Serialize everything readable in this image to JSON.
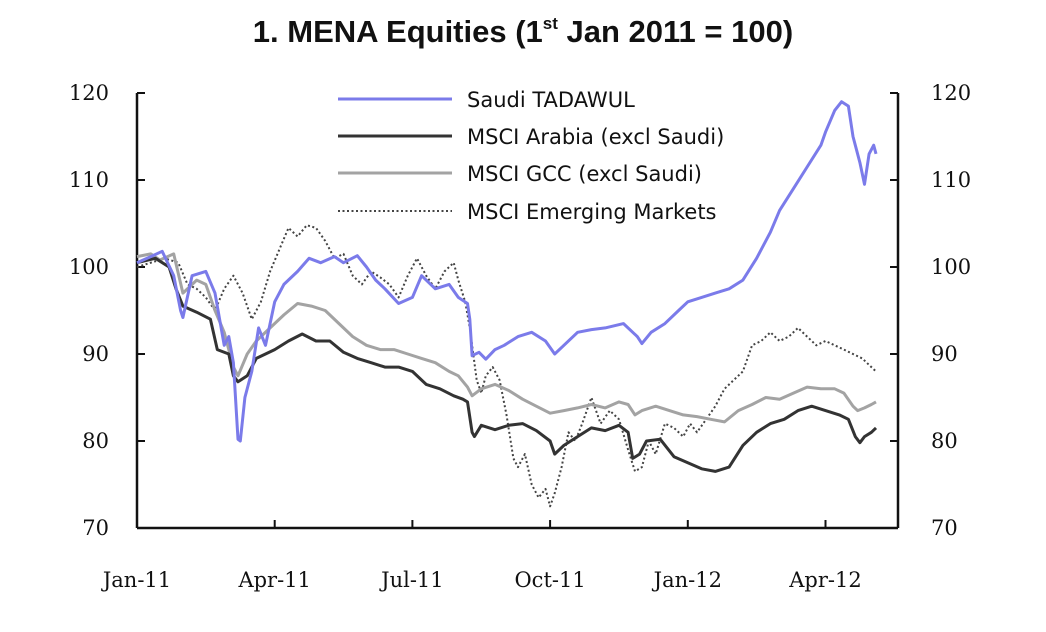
{
  "chart_data": {
    "type": "line",
    "title": {
      "number": "1.",
      "main": "MENA Equities (1",
      "superscript": "st",
      "rest": " Jan 2011 = 100)"
    },
    "x_ticks": [
      "Jan-11",
      "Apr-11",
      "Jul-11",
      "Oct-11",
      "Jan-12",
      "Apr-12"
    ],
    "x_tick_positions_months": [
      0,
      3,
      6,
      9,
      12,
      15
    ],
    "x_range_months": [
      0,
      16.1
    ],
    "ylim": [
      70,
      120
    ],
    "y_ticks": [
      70,
      80,
      90,
      100,
      110,
      120
    ],
    "y_ticks_right": [
      70,
      80,
      90,
      100,
      110,
      120
    ],
    "legend_position": "top-center",
    "series": [
      {
        "name": "Saudi TADAWUL",
        "color": "#7b7bea",
        "style": "solid",
        "points": [
          [
            0,
            100.5
          ],
          [
            0.3,
            101.2
          ],
          [
            0.55,
            101.8
          ],
          [
            0.8,
            99
          ],
          [
            0.95,
            95
          ],
          [
            1.0,
            94.2
          ],
          [
            1.2,
            99
          ],
          [
            1.5,
            99.5
          ],
          [
            1.7,
            97
          ],
          [
            1.9,
            91
          ],
          [
            2.0,
            92
          ],
          [
            2.1,
            89
          ],
          [
            2.2,
            80.2
          ],
          [
            2.25,
            80
          ],
          [
            2.35,
            85
          ],
          [
            2.5,
            88
          ],
          [
            2.65,
            93
          ],
          [
            2.8,
            91
          ],
          [
            3.0,
            96
          ],
          [
            3.2,
            98
          ],
          [
            3.5,
            99.5
          ],
          [
            3.75,
            101
          ],
          [
            4.0,
            100.5
          ],
          [
            4.3,
            101.2
          ],
          [
            4.5,
            100.5
          ],
          [
            4.8,
            101.3
          ],
          [
            5.0,
            100
          ],
          [
            5.2,
            98.5
          ],
          [
            5.4,
            97.5
          ],
          [
            5.7,
            95.8
          ],
          [
            6.0,
            96.5
          ],
          [
            6.2,
            99
          ],
          [
            6.5,
            97.5
          ],
          [
            6.8,
            98
          ],
          [
            7.0,
            96.5
          ],
          [
            7.2,
            95.8
          ],
          [
            7.25,
            94
          ],
          [
            7.3,
            89.8
          ],
          [
            7.45,
            90.2
          ],
          [
            7.6,
            89.4
          ],
          [
            7.8,
            90.5
          ],
          [
            8.0,
            91
          ],
          [
            8.3,
            92
          ],
          [
            8.6,
            92.5
          ],
          [
            8.9,
            91.5
          ],
          [
            9.1,
            90
          ],
          [
            9.3,
            91
          ],
          [
            9.6,
            92.5
          ],
          [
            9.9,
            92.8
          ],
          [
            10.2,
            93
          ],
          [
            10.6,
            93.5
          ],
          [
            10.9,
            92
          ],
          [
            11.0,
            91.2
          ],
          [
            11.2,
            92.5
          ],
          [
            11.5,
            93.5
          ],
          [
            11.8,
            95
          ],
          [
            12.0,
            96
          ],
          [
            12.3,
            96.5
          ],
          [
            12.6,
            97
          ],
          [
            12.9,
            97.5
          ],
          [
            13.2,
            98.5
          ],
          [
            13.5,
            101
          ],
          [
            13.8,
            104
          ],
          [
            14.0,
            106.5
          ],
          [
            14.3,
            109
          ],
          [
            14.6,
            111.5
          ],
          [
            14.9,
            114
          ],
          [
            15.0,
            115.5
          ],
          [
            15.2,
            118
          ],
          [
            15.35,
            119
          ],
          [
            15.5,
            118.5
          ],
          [
            15.6,
            115
          ],
          [
            15.75,
            112
          ],
          [
            15.85,
            109.5
          ],
          [
            15.95,
            113
          ],
          [
            16.05,
            114
          ],
          [
            16.1,
            113
          ]
        ]
      },
      {
        "name": "MSCI Arabia (excl Saudi)",
        "color": "#333333",
        "style": "solid",
        "points": [
          [
            0,
            100.5
          ],
          [
            0.4,
            101
          ],
          [
            0.7,
            100
          ],
          [
            0.85,
            97.5
          ],
          [
            1.0,
            95.5
          ],
          [
            1.3,
            94.8
          ],
          [
            1.6,
            94
          ],
          [
            1.75,
            90.5
          ],
          [
            2.0,
            90
          ],
          [
            2.1,
            87.5
          ],
          [
            2.2,
            86.8
          ],
          [
            2.4,
            87.5
          ],
          [
            2.6,
            89.5
          ],
          [
            2.8,
            90
          ],
          [
            3.0,
            90.5
          ],
          [
            3.3,
            91.5
          ],
          [
            3.6,
            92.3
          ],
          [
            3.9,
            91.5
          ],
          [
            4.2,
            91.5
          ],
          [
            4.5,
            90.2
          ],
          [
            4.8,
            89.5
          ],
          [
            5.1,
            89
          ],
          [
            5.4,
            88.5
          ],
          [
            5.7,
            88.5
          ],
          [
            6.0,
            88
          ],
          [
            6.3,
            86.5
          ],
          [
            6.6,
            86
          ],
          [
            6.9,
            85.2
          ],
          [
            7.1,
            84.8
          ],
          [
            7.2,
            84.5
          ],
          [
            7.3,
            81
          ],
          [
            7.35,
            80.5
          ],
          [
            7.5,
            81.8
          ],
          [
            7.8,
            81.3
          ],
          [
            8.1,
            81.8
          ],
          [
            8.4,
            82
          ],
          [
            8.7,
            81.2
          ],
          [
            9.0,
            80
          ],
          [
            9.1,
            78.5
          ],
          [
            9.3,
            79.5
          ],
          [
            9.6,
            80.5
          ],
          [
            9.9,
            81.5
          ],
          [
            10.2,
            81.2
          ],
          [
            10.5,
            81.8
          ],
          [
            10.7,
            81
          ],
          [
            10.8,
            78
          ],
          [
            10.95,
            78.5
          ],
          [
            11.1,
            80
          ],
          [
            11.4,
            80.2
          ],
          [
            11.7,
            78.2
          ],
          [
            12.0,
            77.5
          ],
          [
            12.3,
            76.8
          ],
          [
            12.6,
            76.5
          ],
          [
            12.9,
            77
          ],
          [
            13.2,
            79.5
          ],
          [
            13.5,
            81
          ],
          [
            13.8,
            82
          ],
          [
            14.1,
            82.5
          ],
          [
            14.4,
            83.5
          ],
          [
            14.7,
            84
          ],
          [
            15.0,
            83.5
          ],
          [
            15.3,
            83
          ],
          [
            15.5,
            82.5
          ],
          [
            15.65,
            80.5
          ],
          [
            15.75,
            79.8
          ],
          [
            15.85,
            80.5
          ],
          [
            16.0,
            81
          ],
          [
            16.1,
            81.5
          ]
        ]
      },
      {
        "name": "MSCI GCC (excl Saudi)",
        "color": "#a3a3a3",
        "style": "solid",
        "points": [
          [
            0,
            101.2
          ],
          [
            0.3,
            101.5
          ],
          [
            0.5,
            100.8
          ],
          [
            0.8,
            101.5
          ],
          [
            1.0,
            97
          ],
          [
            1.3,
            98.5
          ],
          [
            1.5,
            98
          ],
          [
            1.7,
            95
          ],
          [
            1.9,
            92.5
          ],
          [
            2.1,
            88.5
          ],
          [
            2.2,
            87.5
          ],
          [
            2.4,
            90
          ],
          [
            2.6,
            91.5
          ],
          [
            2.9,
            93
          ],
          [
            3.2,
            94.5
          ],
          [
            3.5,
            95.8
          ],
          [
            3.8,
            95.5
          ],
          [
            4.1,
            95
          ],
          [
            4.4,
            93.5
          ],
          [
            4.7,
            92
          ],
          [
            5.0,
            91
          ],
          [
            5.3,
            90.5
          ],
          [
            5.6,
            90.5
          ],
          [
            5.9,
            90
          ],
          [
            6.2,
            89.5
          ],
          [
            6.5,
            89
          ],
          [
            6.8,
            88
          ],
          [
            7.0,
            87.5
          ],
          [
            7.2,
            86.2
          ],
          [
            7.3,
            85.2
          ],
          [
            7.5,
            86
          ],
          [
            7.8,
            86.5
          ],
          [
            8.1,
            85.8
          ],
          [
            8.4,
            84.8
          ],
          [
            8.7,
            84
          ],
          [
            9.0,
            83.2
          ],
          [
            9.3,
            83.5
          ],
          [
            9.6,
            83.8
          ],
          [
            9.9,
            84.2
          ],
          [
            10.2,
            83.8
          ],
          [
            10.5,
            84.5
          ],
          [
            10.7,
            84.2
          ],
          [
            10.85,
            83
          ],
          [
            11.0,
            83.5
          ],
          [
            11.3,
            84
          ],
          [
            11.6,
            83.5
          ],
          [
            11.9,
            83
          ],
          [
            12.2,
            82.8
          ],
          [
            12.5,
            82.5
          ],
          [
            12.8,
            82.2
          ],
          [
            13.1,
            83.5
          ],
          [
            13.4,
            84.2
          ],
          [
            13.7,
            85
          ],
          [
            14.0,
            84.8
          ],
          [
            14.3,
            85.5
          ],
          [
            14.6,
            86.2
          ],
          [
            14.9,
            86
          ],
          [
            15.2,
            86
          ],
          [
            15.4,
            85.5
          ],
          [
            15.6,
            84
          ],
          [
            15.7,
            83.5
          ],
          [
            15.85,
            83.8
          ],
          [
            16.0,
            84.2
          ],
          [
            16.1,
            84.5
          ]
        ]
      },
      {
        "name": "MSCI Emerging Markets",
        "color": "#444444",
        "style": "dotted",
        "points": [
          [
            0,
            100
          ],
          [
            0.3,
            100.5
          ],
          [
            0.6,
            101
          ],
          [
            0.9,
            100.5
          ],
          [
            1.1,
            98
          ],
          [
            1.3,
            97.5
          ],
          [
            1.5,
            96.5
          ],
          [
            1.7,
            95
          ],
          [
            1.9,
            97.5
          ],
          [
            2.1,
            99
          ],
          [
            2.3,
            97
          ],
          [
            2.5,
            94
          ],
          [
            2.7,
            96
          ],
          [
            2.9,
            99.5
          ],
          [
            3.1,
            102
          ],
          [
            3.3,
            104.5
          ],
          [
            3.5,
            103.5
          ],
          [
            3.7,
            104.8
          ],
          [
            3.9,
            104.5
          ],
          [
            4.1,
            103
          ],
          [
            4.3,
            101
          ],
          [
            4.5,
            101.5
          ],
          [
            4.7,
            99
          ],
          [
            4.9,
            98
          ],
          [
            5.1,
            99.5
          ],
          [
            5.3,
            98.8
          ],
          [
            5.5,
            98
          ],
          [
            5.7,
            96.5
          ],
          [
            5.9,
            99
          ],
          [
            6.1,
            101
          ],
          [
            6.3,
            99
          ],
          [
            6.5,
            97.5
          ],
          [
            6.7,
            99.5
          ],
          [
            6.9,
            100.5
          ],
          [
            7.0,
            98.5
          ],
          [
            7.15,
            96
          ],
          [
            7.25,
            93
          ],
          [
            7.4,
            87
          ],
          [
            7.5,
            85.5
          ],
          [
            7.6,
            87.5
          ],
          [
            7.75,
            88.5
          ],
          [
            7.9,
            87
          ],
          [
            8.05,
            83
          ],
          [
            8.2,
            78
          ],
          [
            8.3,
            77
          ],
          [
            8.45,
            78.5
          ],
          [
            8.6,
            75
          ],
          [
            8.75,
            73.5
          ],
          [
            8.9,
            74.5
          ],
          [
            9.0,
            72.5
          ],
          [
            9.1,
            74
          ],
          [
            9.25,
            77
          ],
          [
            9.4,
            81
          ],
          [
            9.55,
            80
          ],
          [
            9.7,
            82
          ],
          [
            9.9,
            85
          ],
          [
            10.1,
            82
          ],
          [
            10.3,
            83.5
          ],
          [
            10.5,
            82.5
          ],
          [
            10.7,
            79
          ],
          [
            10.85,
            76.5
          ],
          [
            11.0,
            77
          ],
          [
            11.15,
            80
          ],
          [
            11.3,
            78.5
          ],
          [
            11.5,
            82
          ],
          [
            11.7,
            81.5
          ],
          [
            11.9,
            80.5
          ],
          [
            12.05,
            82
          ],
          [
            12.2,
            81
          ],
          [
            12.4,
            82.5
          ],
          [
            12.6,
            84
          ],
          [
            12.8,
            86
          ],
          [
            13.0,
            87
          ],
          [
            13.2,
            88
          ],
          [
            13.4,
            91
          ],
          [
            13.6,
            91.5
          ],
          [
            13.8,
            92.5
          ],
          [
            14.0,
            91.5
          ],
          [
            14.2,
            92
          ],
          [
            14.4,
            93
          ],
          [
            14.6,
            92
          ],
          [
            14.8,
            91
          ],
          [
            15.0,
            91.5
          ],
          [
            15.2,
            91
          ],
          [
            15.4,
            90.5
          ],
          [
            15.6,
            90
          ],
          [
            15.8,
            89.5
          ],
          [
            16.0,
            88.5
          ],
          [
            16.1,
            88
          ]
        ]
      }
    ]
  }
}
